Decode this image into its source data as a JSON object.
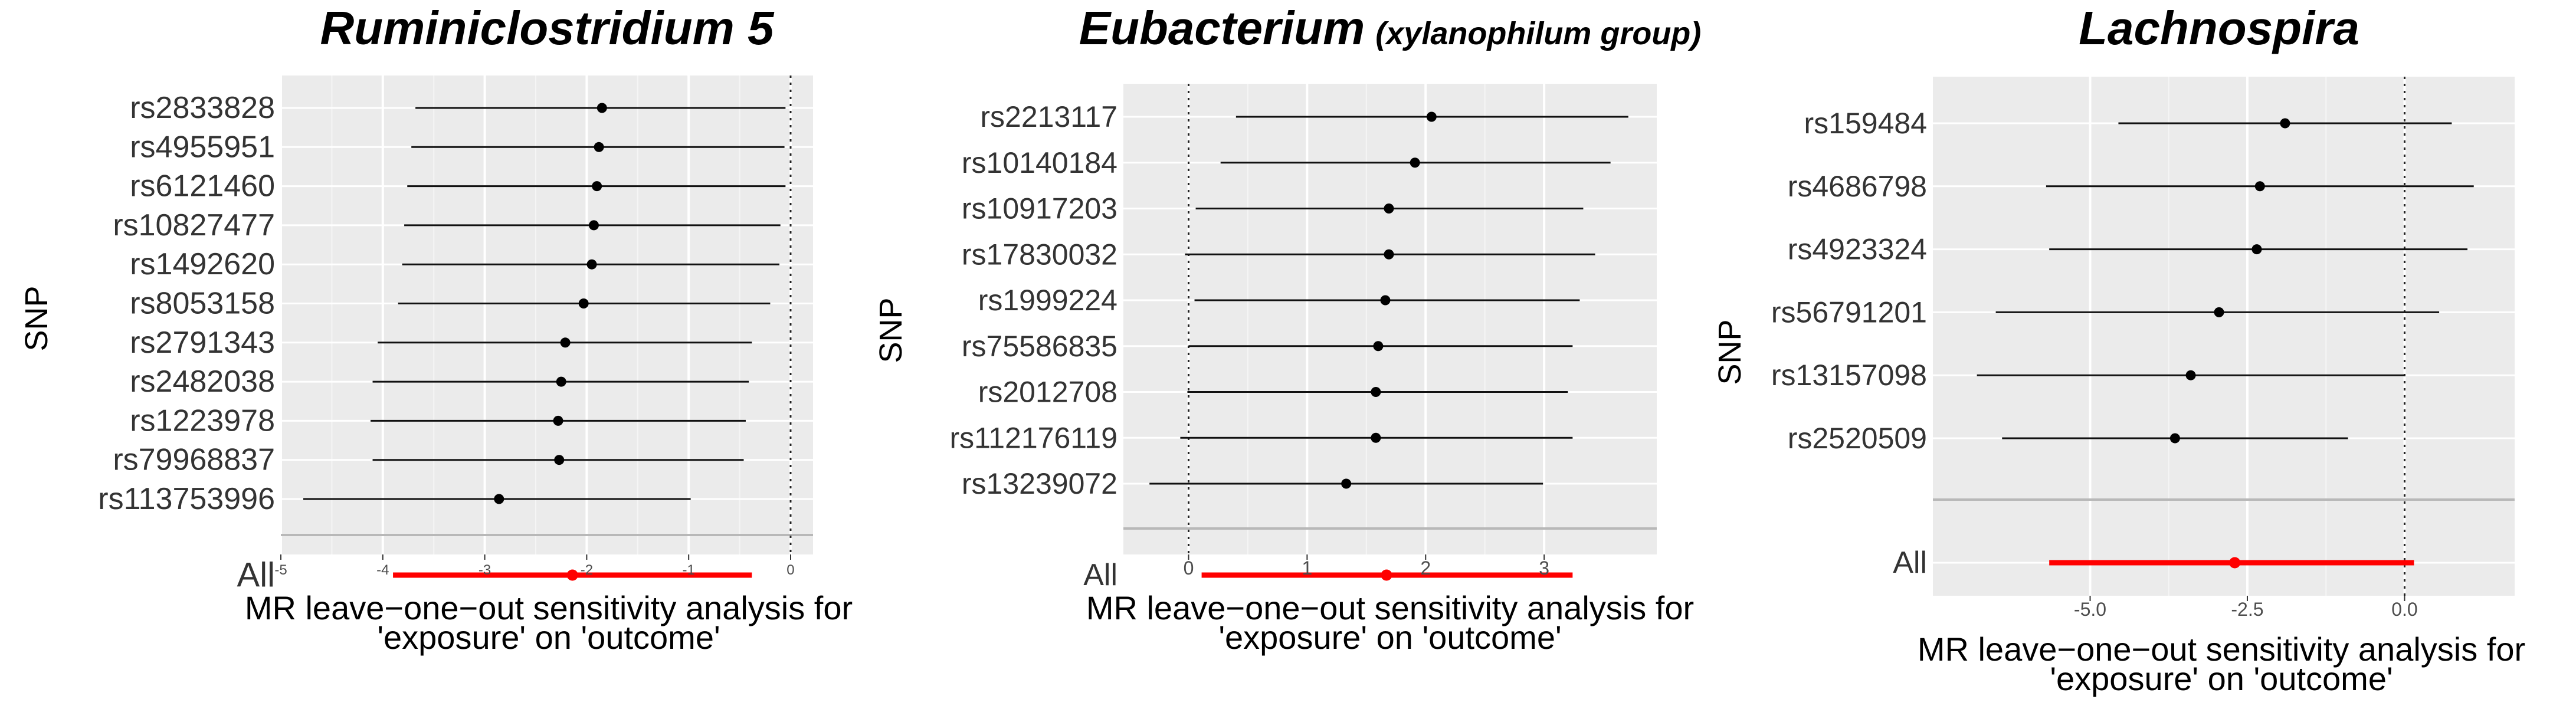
{
  "chart_data": [
    {
      "type": "forest",
      "title": "Ruminiclostridium 5",
      "title_suffix": "",
      "ylabel": "SNP",
      "xlabel_line1": "MR leave−one−out sensitivity analysis for",
      "xlabel_line2": "'exposure' on 'outcome'",
      "x_ticks": [
        "-5",
        "-4",
        "-3",
        "-2",
        "-1",
        "0"
      ],
      "x_tick_values": [
        -5,
        -4,
        -3,
        -2,
        -1,
        0
      ],
      "xlim": [
        -5.0,
        0.22
      ],
      "reference_line": 0,
      "snps": [
        "rs2833828",
        "rs4955951",
        "rs6121460",
        "rs10827477",
        "rs1492620",
        "rs8053158",
        "rs2791343",
        "rs2482038",
        "rs1223978",
        "rs79968837",
        "rs113753996"
      ],
      "estimates": [
        -1.85,
        -1.88,
        -1.9,
        -1.93,
        -1.95,
        -2.03,
        -2.21,
        -2.25,
        -2.28,
        -2.27,
        -2.86
      ],
      "ci_low": [
        -3.68,
        -3.72,
        -3.76,
        -3.79,
        -3.81,
        -3.85,
        -4.05,
        -4.1,
        -4.12,
        -4.1,
        -4.78
      ],
      "ci_high": [
        -0.05,
        -0.06,
        -0.05,
        -0.1,
        -0.11,
        -0.2,
        -0.38,
        -0.41,
        -0.44,
        -0.46,
        -0.98
      ],
      "overall": {
        "label": "All",
        "estimate": -2.14,
        "ci_low": -3.9,
        "ci_high": -0.38
      }
    },
    {
      "type": "forest",
      "title": "Eubacterium",
      "title_suffix": "(xylanophilum group)",
      "ylabel": "SNP",
      "xlabel_line1": "MR leave−one−out sensitivity analysis for",
      "xlabel_line2": "'exposure' on 'outcome'",
      "x_ticks": [
        "0",
        "1",
        "2",
        "3"
      ],
      "x_tick_values": [
        0,
        1,
        2,
        3
      ],
      "xlim": [
        -0.55,
        3.95
      ],
      "reference_line": 0,
      "snps": [
        "rs2213117",
        "rs10140184",
        "rs10917203",
        "rs17830032",
        "rs1999224",
        "rs75586835",
        "rs2012708",
        "rs112176119",
        "rs13239072"
      ],
      "estimates": [
        2.05,
        1.91,
        1.69,
        1.69,
        1.66,
        1.6,
        1.58,
        1.58,
        1.33
      ],
      "ci_low": [
        0.4,
        0.27,
        0.06,
        -0.03,
        0.05,
        0.0,
        -0.01,
        -0.07,
        -0.33
      ],
      "ci_high": [
        3.71,
        3.56,
        3.33,
        3.43,
        3.3,
        3.24,
        3.2,
        3.24,
        2.99
      ],
      "overall": {
        "label": "All",
        "estimate": 1.67,
        "ci_low": 0.11,
        "ci_high": 3.24
      }
    },
    {
      "type": "forest",
      "title": "Lachnospira",
      "title_suffix": "",
      "ylabel": "SNP",
      "xlabel_line1": "MR leave−one−out sensitivity analysis for",
      "xlabel_line2": "'exposure' on 'outcome'",
      "x_ticks": [
        "-5.0",
        "-2.5",
        "0.0"
      ],
      "x_tick_values": [
        -5.0,
        -2.5,
        0.0
      ],
      "xlim": [
        -7.5,
        1.75
      ],
      "reference_line": 0,
      "snps": [
        "rs159484",
        "rs4686798",
        "rs4923324",
        "rs56791201",
        "rs13157098",
        "rs2520509"
      ],
      "estimates": [
        -1.9,
        -2.3,
        -2.35,
        -2.95,
        -3.4,
        -3.65
      ],
      "ci_low": [
        -4.55,
        -5.7,
        -5.65,
        -6.5,
        -6.8,
        -6.4
      ],
      "ci_high": [
        0.75,
        1.1,
        1.0,
        0.55,
        0.0,
        -0.9
      ],
      "overall": {
        "label": "All",
        "estimate": -2.7,
        "ci_low": -5.65,
        "ci_high": 0.15
      }
    }
  ]
}
